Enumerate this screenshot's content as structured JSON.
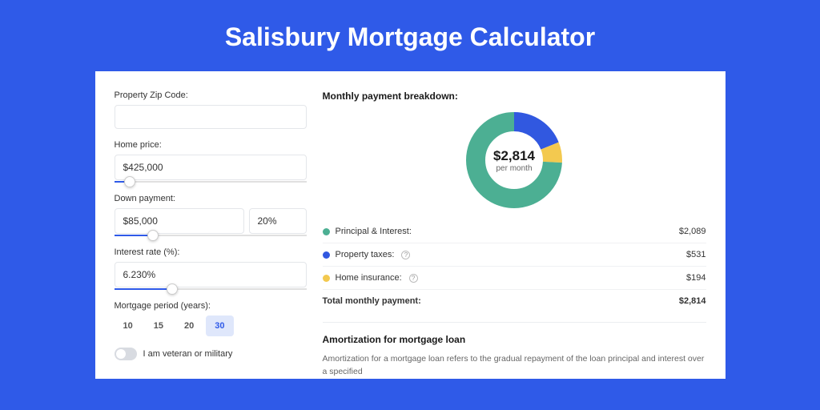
{
  "page": {
    "title": "Salisbury Mortgage Calculator",
    "background_color": "#2f5ae8",
    "card_background": "#ffffff"
  },
  "form": {
    "zip": {
      "label": "Property Zip Code:",
      "value": ""
    },
    "home_price": {
      "label": "Home price:",
      "value": "$425,000",
      "slider_pct": 8
    },
    "down_payment": {
      "label": "Down payment:",
      "amount": "$85,000",
      "pct": "20%",
      "slider_pct": 20
    },
    "interest_rate": {
      "label": "Interest rate (%):",
      "value": "6.230%",
      "slider_pct": 30
    },
    "period": {
      "label": "Mortgage period (years):",
      "options": [
        {
          "label": "10",
          "active": false
        },
        {
          "label": "15",
          "active": false
        },
        {
          "label": "20",
          "active": false
        },
        {
          "label": "30",
          "active": true
        }
      ]
    },
    "veteran": {
      "label": "I am veteran or military",
      "on": false
    }
  },
  "breakdown": {
    "title": "Monthly payment breakdown:",
    "total_amount": "$2,814",
    "total_sub": "per month",
    "items": [
      {
        "key": "principal_interest",
        "label": "Principal & Interest:",
        "value": "$2,089",
        "color": "#4caf93",
        "fraction": 0.742,
        "has_info": false
      },
      {
        "key": "property_taxes",
        "label": "Property taxes:",
        "value": "$531",
        "color": "#3158e0",
        "fraction": 0.189,
        "has_info": true
      },
      {
        "key": "home_insurance",
        "label": "Home insurance:",
        "value": "$194",
        "color": "#f3c94f",
        "fraction": 0.069,
        "has_info": true
      }
    ],
    "total_row": {
      "label": "Total monthly payment:",
      "value": "$2,814"
    },
    "donut": {
      "radius": 48,
      "stroke_width": 24,
      "size": 122
    }
  },
  "amortization": {
    "title": "Amortization for mortgage loan",
    "text": "Amortization for a mortgage loan refers to the gradual repayment of the loan principal and interest over a specified"
  },
  "colors": {
    "accent": "#2f5ae8",
    "border": "#e4e6ea",
    "text": "#333333",
    "muted": "#666666"
  }
}
